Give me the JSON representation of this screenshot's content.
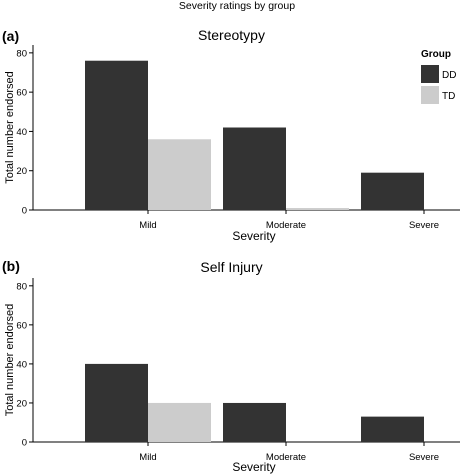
{
  "figure_title": "Severity ratings by group",
  "legend": {
    "title": "Group",
    "items": [
      {
        "label": "DD",
        "color": "#333333"
      },
      {
        "label": "TD",
        "color": "#cccccc"
      }
    ]
  },
  "chart_data": [
    {
      "type": "bar",
      "panel_label": "(a)",
      "title": "Stereotypy",
      "xlabel": "Severity",
      "ylabel": "Total number endorsed",
      "categories": [
        "Mild",
        "Moderate",
        "Severe"
      ],
      "series": [
        {
          "name": "DD",
          "values": [
            76,
            42,
            19
          ],
          "color": "#333333"
        },
        {
          "name": "TD",
          "values": [
            36,
            1,
            0
          ],
          "color": "#cccccc"
        }
      ],
      "ylim": [
        0,
        84
      ],
      "yticks": [
        0,
        20,
        40,
        60,
        80
      ],
      "grid": false,
      "legend_position": "right"
    },
    {
      "type": "bar",
      "panel_label": "(b)",
      "title": "Self Injury",
      "xlabel": "Severity",
      "ylabel": "Total number endorsed",
      "categories": [
        "Mild",
        "Moderate",
        "Severe"
      ],
      "series": [
        {
          "name": "DD",
          "values": [
            40,
            20,
            13
          ],
          "color": "#333333"
        },
        {
          "name": "TD",
          "values": [
            20,
            0,
            0
          ],
          "color": "#cccccc"
        }
      ],
      "ylim": [
        0,
        84
      ],
      "yticks": [
        0,
        20,
        40,
        60,
        80
      ],
      "grid": false,
      "legend_position": "none"
    }
  ]
}
